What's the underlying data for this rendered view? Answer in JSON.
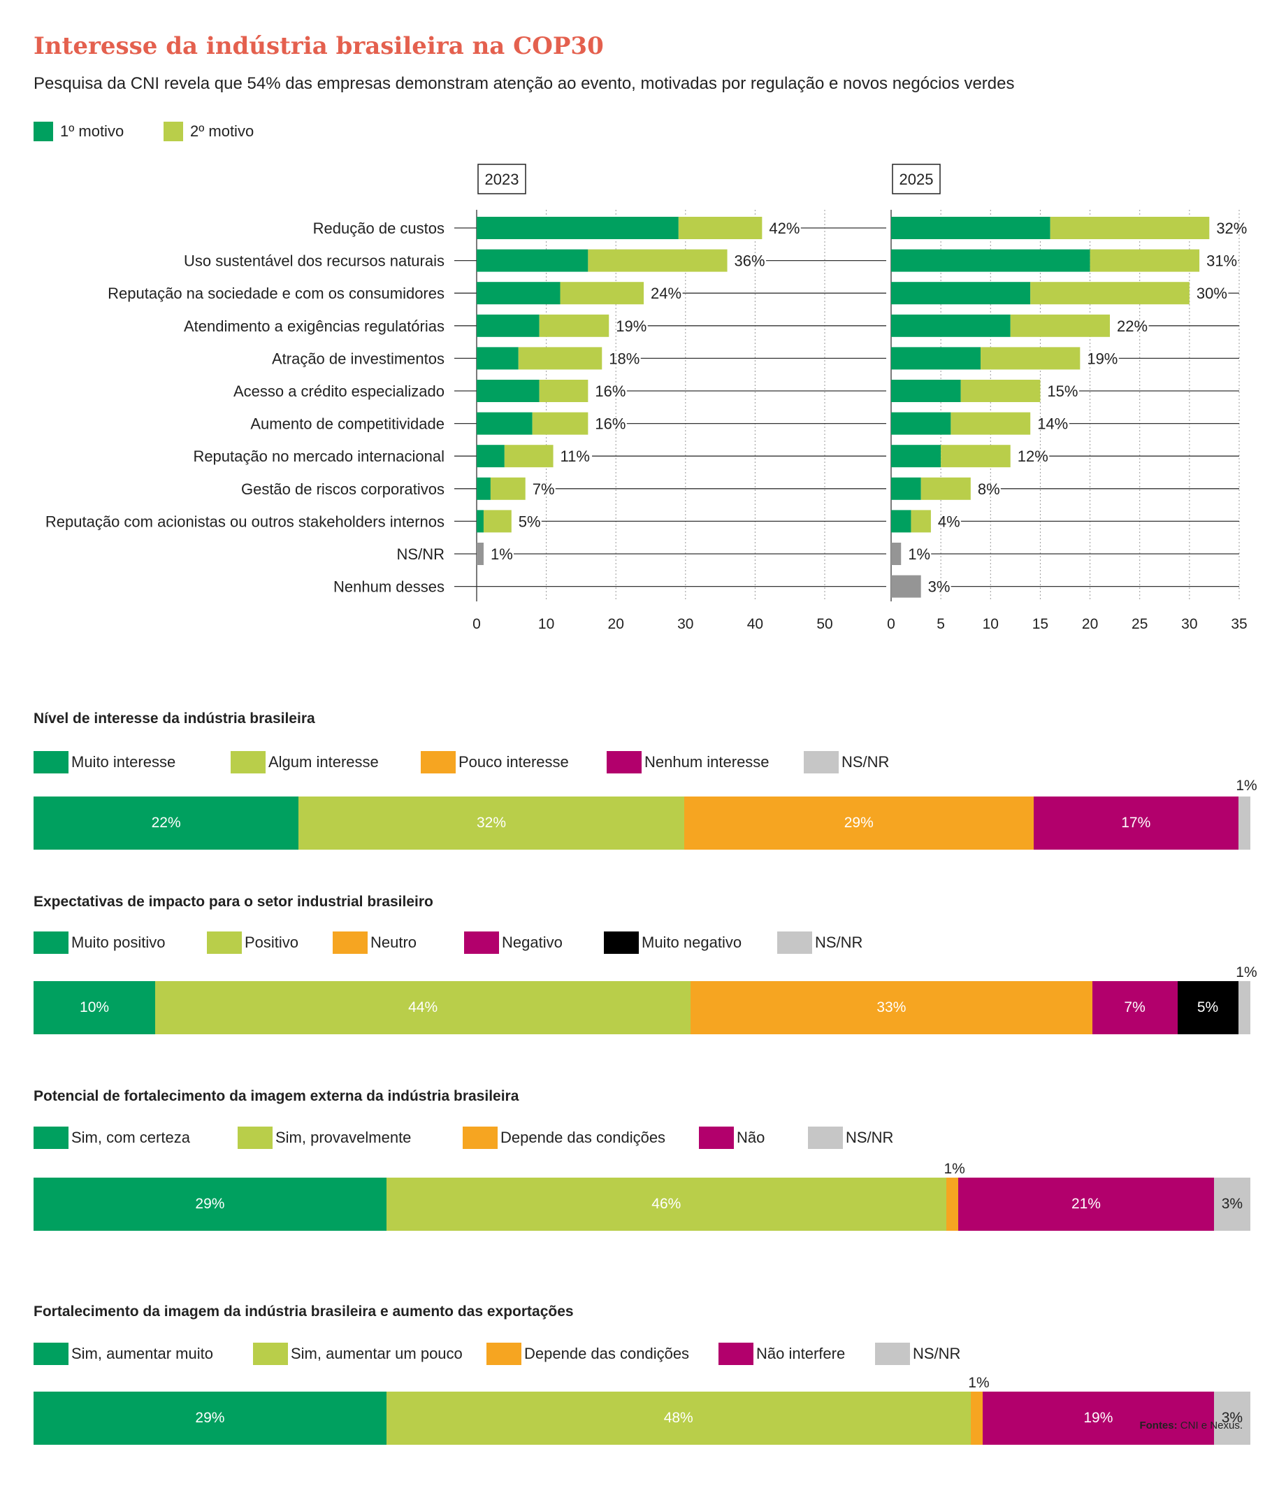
{
  "title": "Interesse da indústria brasileira na COP30",
  "subtitle": "Pesquisa da CNI revela que 54% das empresas demonstram atenção ao evento, motivadas por regulação e novos negócios verdes",
  "colors": {
    "primary": "#00a05f",
    "secondary": "#b9ce4a",
    "orange": "#f6a521",
    "magenta": "#b2006c",
    "black": "#000000",
    "gray": "#c6c6c6",
    "dark_gray": "#959595",
    "title": "#e4604e"
  },
  "legend": {
    "first": "1º motivo",
    "second": "2º motivo"
  },
  "chart_data": [
    {
      "type": "bar",
      "orientation": "horizontal",
      "stacked": true,
      "panel_label": "2023",
      "categories": [
        "Redução de custos",
        "Uso sustentável dos recursos naturais",
        "Reputação na sociedade e com os consumidores",
        "Atendimento a exigências regulatórias",
        "Atração de investimentos",
        "Acesso a crédito especializado",
        "Aumento de competitividade",
        "Reputação no mercado internacional",
        "Gestão de riscos corporativos",
        "Reputação com acionistas ou outros stakeholders internos",
        "NS/NR",
        "Nenhum desses"
      ],
      "series": [
        {
          "name": "1º motivo",
          "values": [
            29,
            16,
            12,
            9,
            6,
            9,
            8,
            4,
            2,
            1,
            0,
            0
          ]
        },
        {
          "name": "2º motivo",
          "values": [
            12,
            20,
            12,
            10,
            12,
            7,
            8,
            7,
            5,
            4,
            0,
            0
          ]
        },
        {
          "values": [
            0,
            0,
            0,
            0,
            0,
            0,
            0,
            0,
            0,
            0,
            1,
            0
          ]
        }
      ],
      "totals": [
        42,
        36,
        24,
        19,
        18,
        16,
        16,
        11,
        7,
        5,
        1,
        null
      ],
      "data_labels": [
        "42%",
        "36%",
        "24%",
        "19%",
        "18%",
        "16%",
        "16%",
        "11%",
        "7%",
        "5%",
        "1%",
        ""
      ],
      "xlim": [
        0,
        50
      ],
      "xticks": [
        0,
        10,
        20,
        30,
        40,
        50
      ],
      "grid": true
    },
    {
      "type": "bar",
      "orientation": "horizontal",
      "stacked": true,
      "panel_label": "2025",
      "categories": [
        "Redução de custos",
        "Uso sustentável dos recursos naturais",
        "Reputação na sociedade e com os consumidores",
        "Atendimento a exigências regulatórias",
        "Atração de investimentos",
        "Acesso a crédito especializado",
        "Aumento de competitividade",
        "Reputação no mercado internacional",
        "Gestão de riscos corporativos",
        "Reputação com acionistas ou outros stakeholders internos",
        "NS/NR",
        "Nenhum desses"
      ],
      "series": [
        {
          "name": "1º motivo",
          "values": [
            16,
            20,
            14,
            12,
            9,
            7,
            6,
            5,
            3,
            2,
            0,
            0
          ]
        },
        {
          "name": "2º motivo",
          "values": [
            16,
            11,
            16,
            10,
            10,
            8,
            8,
            7,
            5,
            2,
            0,
            0
          ]
        },
        {
          "values": [
            0,
            0,
            0,
            0,
            0,
            0,
            0,
            0,
            0,
            0,
            1,
            3
          ]
        }
      ],
      "totals": [
        32,
        31,
        30,
        22,
        19,
        15,
        14,
        12,
        8,
        4,
        1,
        3
      ],
      "data_labels": [
        "32%",
        "31%",
        "30%",
        "22%",
        "19%",
        "15%",
        "14%",
        "12%",
        "8%",
        "4%",
        "1%",
        "3%"
      ],
      "xlim": [
        0,
        35
      ],
      "xticks": [
        0,
        5,
        10,
        15,
        20,
        25,
        30,
        35
      ],
      "grid": true
    },
    {
      "type": "bar",
      "orientation": "horizontal",
      "stacked": true,
      "percent_stack": true,
      "title": "Nível de interesse da indústria brasileira",
      "categories": [
        "Muito interesse",
        "Algum interesse",
        "Pouco interesse",
        "Nenhum interesse",
        "NS/NR"
      ],
      "values": [
        22,
        32,
        29,
        17,
        1
      ],
      "labels": [
        "22%",
        "32%",
        "29%",
        "17%",
        "1%"
      ]
    },
    {
      "type": "bar",
      "orientation": "horizontal",
      "stacked": true,
      "percent_stack": true,
      "title": "Expectativas de impacto para o setor industrial brasileiro",
      "categories": [
        "Muito positivo",
        "Positivo",
        "Neutro",
        "Negativo",
        "Muito negativo",
        "NS/NR"
      ],
      "values": [
        10,
        44,
        33,
        7,
        5,
        1
      ],
      "labels": [
        "10%",
        "44%",
        "33%",
        "7%",
        "5%",
        "1%"
      ]
    },
    {
      "type": "bar",
      "orientation": "horizontal",
      "stacked": true,
      "percent_stack": true,
      "title": "Potencial de fortalecimento da imagem externa da indústria brasileira",
      "categories": [
        "Sim, com certeza",
        "Sim, provavelmente",
        "Depende das condições",
        "Não",
        "NS/NR"
      ],
      "values": [
        29,
        46,
        1,
        21,
        3
      ],
      "labels": [
        "29%",
        "46%",
        "1%",
        "21%",
        "3%"
      ]
    },
    {
      "type": "bar",
      "orientation": "horizontal",
      "stacked": true,
      "percent_stack": true,
      "title": "Fortalecimento da imagem da indústria brasileira e aumento das exportações",
      "categories": [
        "Sim, aumentar muito",
        "Sim, aumentar um pouco",
        "Depende das condições",
        "Não interfere",
        "NS/NR"
      ],
      "values": [
        29,
        48,
        1,
        19,
        3
      ],
      "labels": [
        "29%",
        "48%",
        "1%",
        "19%",
        "3%"
      ]
    }
  ],
  "stacks": [
    {
      "title": "Nível de interesse da indústria brasileira",
      "legend": [
        "Muito interesse",
        "Algum interesse",
        "Pouco interesse",
        "Nenhum interesse",
        "NS/NR"
      ],
      "colors": [
        "#00a05f",
        "#b9ce4a",
        "#f6a521",
        "#b2006c",
        "#c6c6c6"
      ],
      "values": [
        22,
        32,
        29,
        17,
        1
      ],
      "labels": [
        "22%",
        "32%",
        "29%",
        "17%",
        "1%"
      ]
    },
    {
      "title": "Expectativas de impacto para o setor industrial brasileiro",
      "legend": [
        "Muito positivo",
        "Positivo",
        "Neutro",
        "Negativo",
        "Muito negativo",
        "NS/NR"
      ],
      "colors": [
        "#00a05f",
        "#b9ce4a",
        "#f6a521",
        "#b2006c",
        "#000000",
        "#c6c6c6"
      ],
      "values": [
        10,
        44,
        33,
        7,
        5,
        1
      ],
      "labels": [
        "10%",
        "44%",
        "33%",
        "7%",
        "5%",
        "1%"
      ]
    },
    {
      "title": "Potencial de fortalecimento da imagem externa da indústria brasileira",
      "legend": [
        "Sim, com certeza",
        "Sim, provavelmente",
        "Depende das condições",
        "Não",
        "NS/NR"
      ],
      "colors": [
        "#00a05f",
        "#b9ce4a",
        "#f6a521",
        "#b2006c",
        "#c6c6c6"
      ],
      "values": [
        29,
        46,
        1,
        21,
        3
      ],
      "labels": [
        "29%",
        "46%",
        "1%",
        "21%",
        "3%"
      ]
    },
    {
      "title": "Fortalecimento da imagem da indústria brasileira e aumento das exportações",
      "legend": [
        "Sim, aumentar muito",
        "Sim, aumentar um pouco",
        "Depende das condições",
        "Não interfere",
        "NS/NR"
      ],
      "colors": [
        "#00a05f",
        "#b9ce4a",
        "#f6a521",
        "#b2006c",
        "#c6c6c6"
      ],
      "values": [
        29,
        48,
        1,
        19,
        3
      ],
      "labels": [
        "29%",
        "48%",
        "1%",
        "19%",
        "3%"
      ]
    }
  ],
  "source": {
    "label": "Fontes:",
    "text": "CNI e Nexus."
  }
}
